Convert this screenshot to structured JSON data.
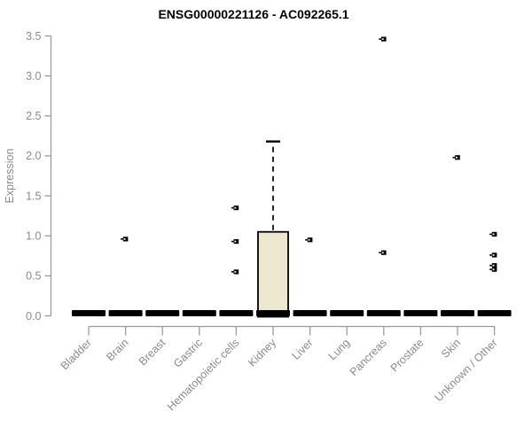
{
  "chart_data": {
    "type": "boxplot",
    "title": "ENSG00000221126 - AC092265.1",
    "xlabel": "",
    "ylabel": "Expression",
    "ylim": [
      0,
      3.5
    ],
    "yticks": [
      0.0,
      0.5,
      1.0,
      1.5,
      2.0,
      2.5,
      3.0,
      3.5
    ],
    "grid": false,
    "legend_position": "none",
    "categories": [
      "Bladder",
      "Brain",
      "Breast",
      "Gastric",
      "Hematopoietic cells",
      "Kidney",
      "Liver",
      "Lung",
      "Pancreas",
      "Prostate",
      "Skin",
      "Unknown / Other"
    ],
    "boxes": [
      {
        "category": "Bladder",
        "low": 0,
        "q1": 0,
        "median": 0,
        "q3": 0,
        "high": 0,
        "outliers": []
      },
      {
        "category": "Brain",
        "low": 0,
        "q1": 0,
        "median": 0,
        "q3": 0,
        "high": 0,
        "outliers": [
          0.96
        ]
      },
      {
        "category": "Breast",
        "low": 0,
        "q1": 0,
        "median": 0,
        "q3": 0,
        "high": 0,
        "outliers": []
      },
      {
        "category": "Gastric",
        "low": 0,
        "q1": 0,
        "median": 0,
        "q3": 0,
        "high": 0,
        "outliers": []
      },
      {
        "category": "Hematopoietic cells",
        "low": 0,
        "q1": 0,
        "median": 0,
        "q3": 0,
        "high": 0,
        "outliers": [
          1.35,
          0.93,
          0.55
        ]
      },
      {
        "category": "Kidney",
        "low": 0,
        "q1": 0,
        "median": 0,
        "q3": 1.05,
        "high": 2.18,
        "outliers": []
      },
      {
        "category": "Liver",
        "low": 0,
        "q1": 0,
        "median": 0,
        "q3": 0,
        "high": 0,
        "outliers": [
          0.95
        ]
      },
      {
        "category": "Lung",
        "low": 0,
        "q1": 0,
        "median": 0,
        "q3": 0,
        "high": 0,
        "outliers": []
      },
      {
        "category": "Pancreas",
        "low": 0,
        "q1": 0,
        "median": 0,
        "q3": 0,
        "high": 0,
        "outliers": [
          3.46,
          0.79
        ]
      },
      {
        "category": "Prostate",
        "low": 0,
        "q1": 0,
        "median": 0,
        "q3": 0,
        "high": 0,
        "outliers": []
      },
      {
        "category": "Skin",
        "low": 0,
        "q1": 0,
        "median": 0,
        "q3": 0,
        "high": 0,
        "outliers": [
          1.98
        ]
      },
      {
        "category": "Unknown / Other",
        "low": 0,
        "q1": 0,
        "median": 0,
        "q3": 0,
        "high": 0,
        "outliers": [
          1.02,
          0.76,
          0.63,
          0.58
        ]
      }
    ],
    "colors": {
      "box_fill": "#EDE7CF",
      "box_stroke": "#000000",
      "median": "#000000",
      "outlier": "#000000",
      "axis_line": "#9b9b9b",
      "tick_label": "#8a8a8a",
      "title": "#000000",
      "background": "#ffffff"
    }
  }
}
